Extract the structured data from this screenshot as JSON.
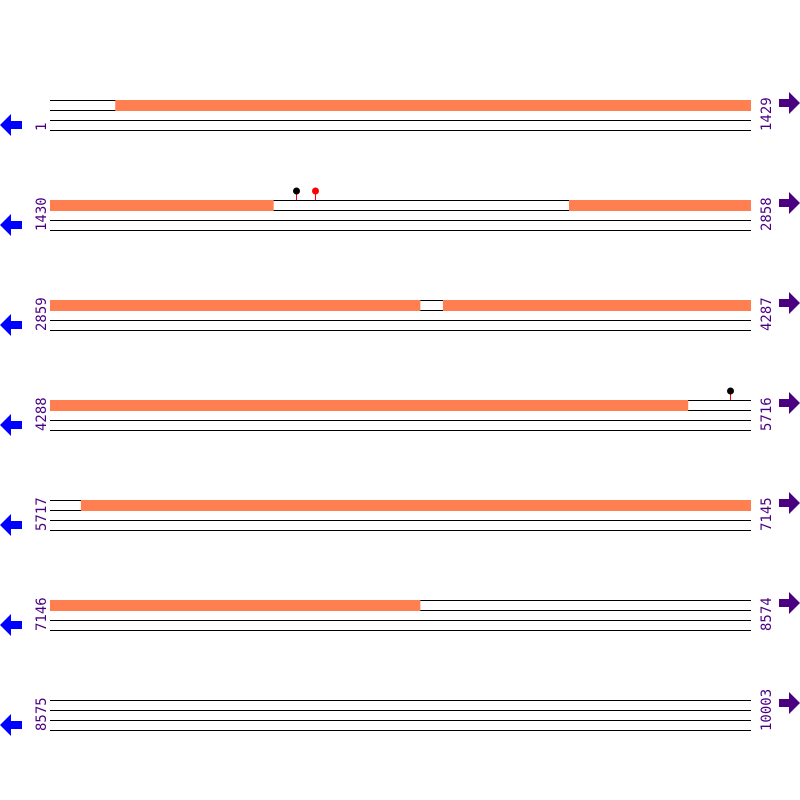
{
  "colors": {
    "feature": "#FF7F50",
    "track_line": "#000000",
    "label": "#4B0082",
    "left_arrow": "#0000FF",
    "right_arrow": "#4B0082",
    "marker_black": "#000000",
    "marker_red": "#FF0000"
  },
  "icons": {
    "left": "arrow-left-icon",
    "right": "arrow-right-icon"
  },
  "rows": [
    {
      "start": "1",
      "end": "1429",
      "features": [
        [
          134,
          1429
        ]
      ],
      "markers": []
    },
    {
      "start": "1430",
      "end": "2858",
      "features": [
        [
          1430,
          1885
        ],
        [
          2488,
          2858
        ]
      ],
      "markers": [
        {
          "pos": 1931,
          "color": "black"
        },
        {
          "pos": 1970,
          "color": "red"
        }
      ]
    },
    {
      "start": "2859",
      "end": "4287",
      "features": [
        [
          2859,
          3613
        ],
        [
          3660,
          4287
        ]
      ],
      "markers": []
    },
    {
      "start": "4288",
      "end": "5716",
      "features": [
        [
          4288,
          5588
        ]
      ],
      "markers": [
        {
          "pos": 5674,
          "color": "black"
        }
      ]
    },
    {
      "start": "5717",
      "end": "7145",
      "features": [
        [
          5780,
          7145
        ]
      ],
      "markers": []
    },
    {
      "start": "7146",
      "end": "8574",
      "features": [
        [
          7146,
          7900
        ]
      ],
      "markers": []
    },
    {
      "start": "8575",
      "end": "10003",
      "features": [],
      "markers": []
    }
  ]
}
